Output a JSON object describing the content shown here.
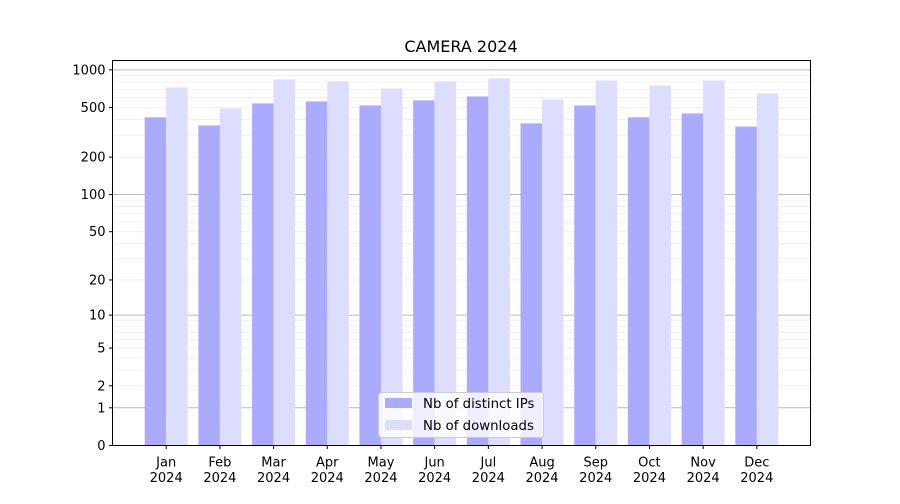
{
  "chart_data": {
    "type": "bar",
    "title": "CAMERA 2024",
    "xlabel": "",
    "ylabel": "",
    "yscale": "log(1+y)",
    "ylim": [
      0,
      1150
    ],
    "grid": true,
    "legend_position": "bottom-center",
    "categories": [
      "Jan\n2024",
      "Feb\n2024",
      "Mar\n2024",
      "Apr\n2024",
      "May\n2024",
      "Jun\n2024",
      "Jul\n2024",
      "Aug\n2024",
      "Sep\n2024",
      "Oct\n2024",
      "Nov\n2024",
      "Dec\n2024"
    ],
    "yticks": [
      0,
      1,
      2,
      5,
      10,
      20,
      50,
      100,
      200,
      500,
      1000
    ],
    "series": [
      {
        "name": "Nb of distinct IPs",
        "color": "#aaaaff",
        "values": [
          417,
          359,
          539,
          559,
          519,
          570,
          613,
          373,
          519,
          417,
          448,
          352
        ]
      },
      {
        "name": "Nb of downloads",
        "color": "#ddddff",
        "values": [
          723,
          491,
          838,
          808,
          710,
          808,
          853,
          580,
          823,
          750,
          823,
          648
        ]
      }
    ]
  }
}
